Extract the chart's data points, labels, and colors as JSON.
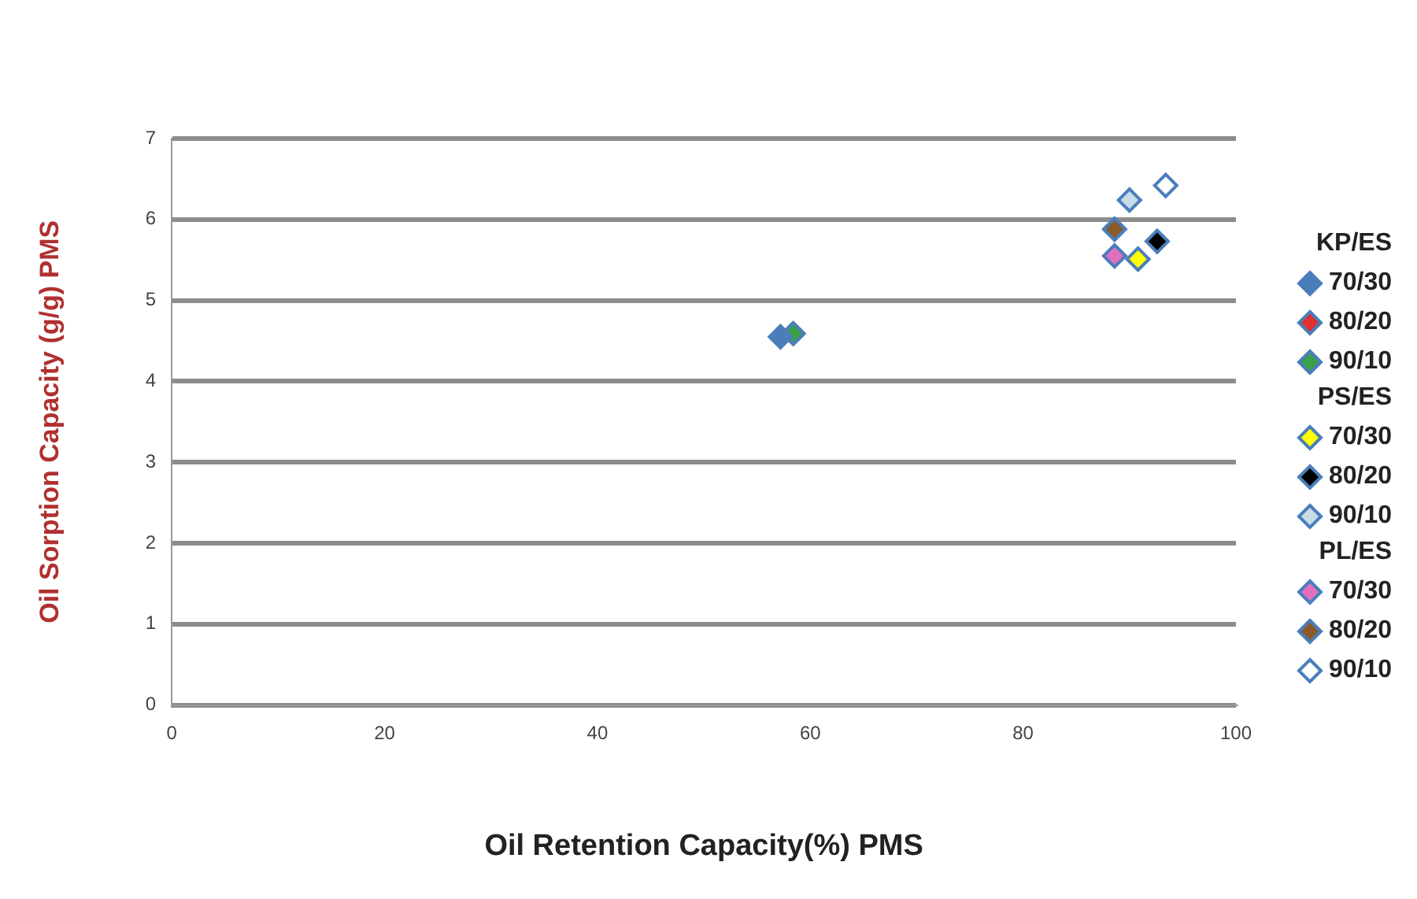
{
  "chart_data": {
    "type": "scatter",
    "xlabel": "Oil Retention Capacity(%) PMS",
    "ylabel": "Oil Sorption Capacity (g/g) PMS",
    "xlim": [
      0,
      100
    ],
    "xticks": [
      0,
      20,
      40,
      60,
      80,
      100
    ],
    "ylim": [
      0,
      7
    ],
    "yticks": [
      0,
      1,
      2,
      3,
      4,
      5,
      6,
      7
    ],
    "grid": "y",
    "legend": "right",
    "marker": "diamond",
    "annotations": [
      "KP/ES",
      "PS/ES",
      "PL/ES"
    ],
    "series": [
      {
        "name": "70/30",
        "color": "#4a7ebb",
        "x": [
          57.2
        ],
        "values": [
          4.55
        ]
      },
      {
        "name": "80/20",
        "color": "#e03030",
        "x": [
          null
        ],
        "values": [
          null
        ]
      },
      {
        "name": "90/10",
        "color": "#3aa04a",
        "x": [
          58.4
        ],
        "values": [
          4.59
        ]
      },
      {
        "name": "70/30",
        "color": "#ffff00",
        "x": [
          90.8
        ],
        "values": [
          5.51
        ]
      },
      {
        "name": "80/20",
        "color": "#000000",
        "x": [
          92.6
        ],
        "values": [
          5.73
        ]
      },
      {
        "name": "90/10",
        "color": "#c8dce8",
        "x": [
          90.0
        ],
        "values": [
          6.24
        ]
      },
      {
        "name": "70/30",
        "color": "#e070c0",
        "x": [
          88.6
        ],
        "values": [
          5.55
        ]
      },
      {
        "name": "80/20",
        "color": "#8b5a2b",
        "x": [
          88.6
        ],
        "values": [
          5.88
        ]
      },
      {
        "name": "90/10",
        "color": "#ffffff",
        "x": [
          93.4
        ],
        "values": [
          6.42
        ]
      }
    ]
  }
}
